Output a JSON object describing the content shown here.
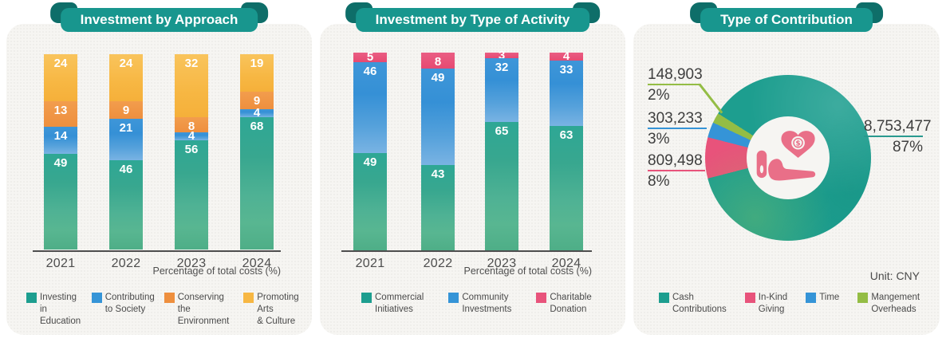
{
  "colors": {
    "teal": "#1d9e8f",
    "blue": "#3594d7",
    "orange": "#ee8f3e",
    "yellow": "#f7b743",
    "pink": "#e8537b",
    "lime": "#94bd45",
    "ribbon": "#18968e",
    "ribbon_fold": "#0e6e69",
    "card_background": "#f6f5f2"
  },
  "chart_data": [
    {
      "type": "bar",
      "stacked": true,
      "title": "Investment by Approach",
      "categories": [
        "2021",
        "2022",
        "2023",
        "2024"
      ],
      "series": [
        {
          "name": "Investing in Education",
          "label": "Investing in\nEducation",
          "color_key": "teal",
          "values": [
            49,
            46,
            56,
            68
          ]
        },
        {
          "name": "Contributing to Society",
          "label": "Contributing\nto Society",
          "color_key": "blue",
          "values": [
            14,
            21,
            4,
            4
          ]
        },
        {
          "name": "Conserving the Environment",
          "label": "Conserving the\nEnvironment",
          "color_key": "orange",
          "values": [
            13,
            9,
            8,
            9
          ]
        },
        {
          "name": "Promoting Arts & Culture",
          "label": "Promoting Arts\n& Culture",
          "color_key": "yellow",
          "values": [
            24,
            24,
            32,
            19
          ]
        }
      ],
      "xlabel": "Percentage of total costs (%)",
      "ylim": [
        0,
        100
      ],
      "legend_position": "bottom"
    },
    {
      "type": "bar",
      "stacked": true,
      "title": "Investment by Type of Activity",
      "categories": [
        "2021",
        "2022",
        "2023",
        "2024"
      ],
      "series": [
        {
          "name": "Commercial Initiatives",
          "label": "Commercial\nInitiatives",
          "color_key": "teal",
          "values": [
            49,
            43,
            65,
            63
          ]
        },
        {
          "name": "Community Investments",
          "label": "Community\nInvestments",
          "color_key": "blue",
          "values": [
            46,
            49,
            32,
            33
          ]
        },
        {
          "name": "Charitable Donation",
          "label": "Charitable\nDonation",
          "color_key": "pink",
          "values": [
            5,
            8,
            3,
            4
          ]
        }
      ],
      "xlabel": "Percentage of total costs (%)",
      "ylim": [
        0,
        100
      ],
      "legend_position": "bottom"
    },
    {
      "type": "donut",
      "title": "Type of Contribution",
      "unit_label": "Unit: CNY",
      "start_angle_deg": -57.6,
      "slices": [
        {
          "name": "Cash Contributions",
          "label": "Cash\nContributions",
          "color_key": "teal",
          "value": "8,753,477",
          "pct": 87,
          "pct_label": "87%"
        },
        {
          "name": "In-Kind Giving",
          "label": "In-Kind\nGiving",
          "color_key": "pink",
          "value": "809,498",
          "pct": 8,
          "pct_label": "8%"
        },
        {
          "name": "Time",
          "label": "Time",
          "color_key": "blue",
          "value": "303,233",
          "pct": 3,
          "pct_label": "3%"
        },
        {
          "name": "Mangement Overheads",
          "label": "Mangement\nOverheads",
          "color_key": "lime",
          "value": "148,903",
          "pct": 2,
          "pct_label": "2%"
        }
      ],
      "legend_position": "bottom",
      "center_icon": "hand-holding-heart-coin-icon"
    }
  ]
}
